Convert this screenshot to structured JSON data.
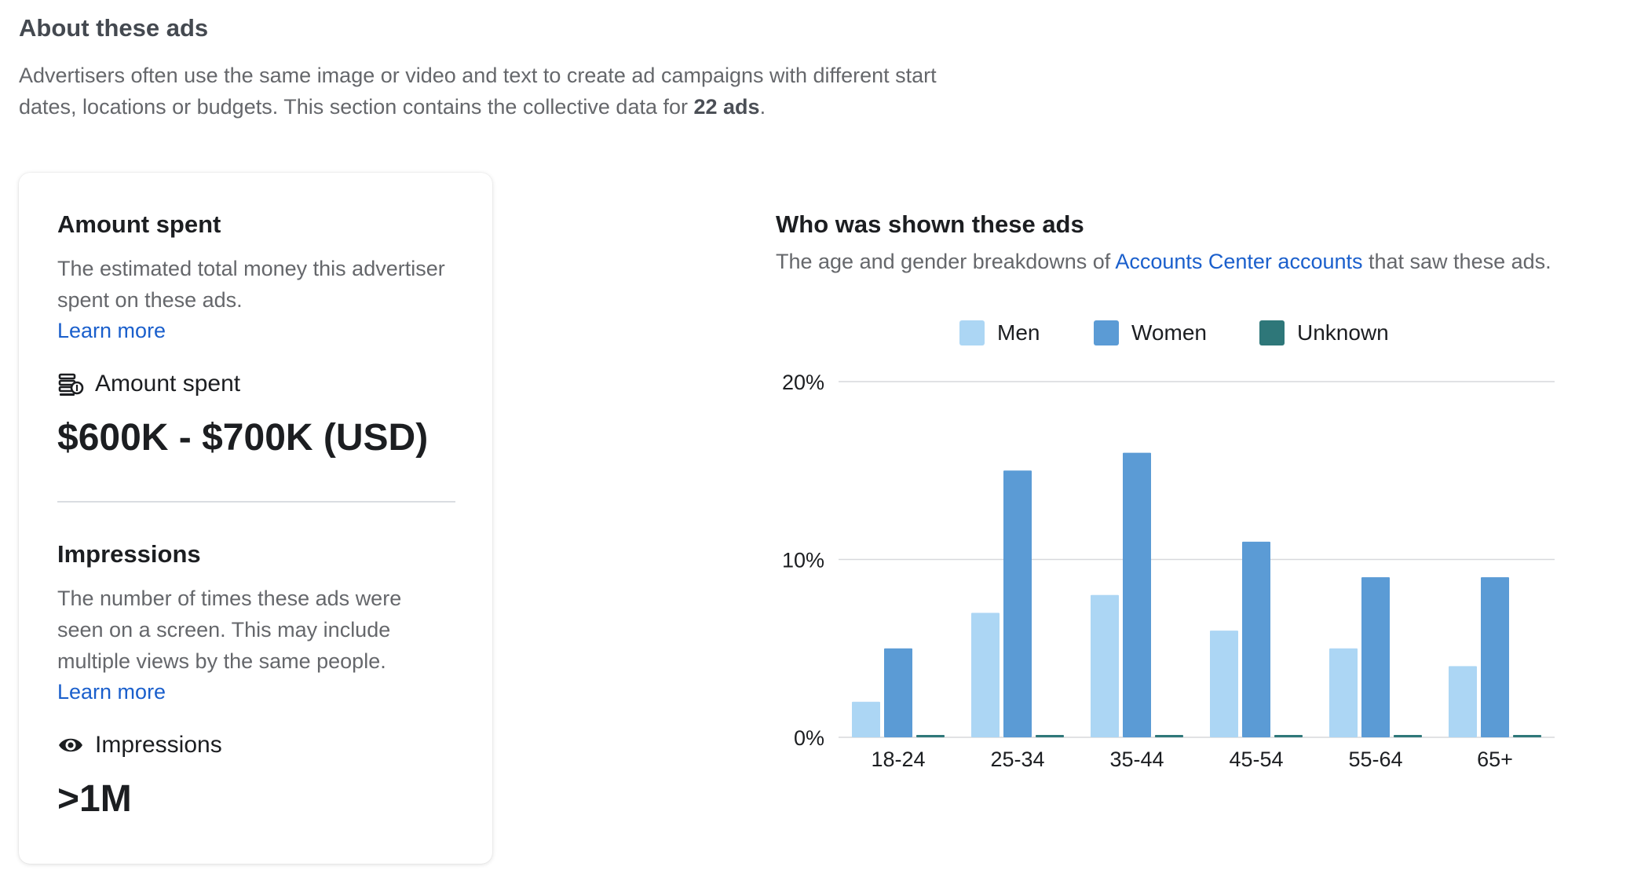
{
  "about": {
    "title": "About these ads",
    "desc_prefix": "Advertisers often use the same image or video and text to create ad campaigns with different start dates, locations or budgets. This section contains the collective data for ",
    "desc_count": "22 ads",
    "desc_suffix": "."
  },
  "amount_spent": {
    "title": "Amount spent",
    "description": "The estimated total money this advertiser spent on these ads.",
    "learn_more": "Learn more",
    "metric_label": "Amount spent",
    "metric_icon": "coins-stack-icon",
    "value": "$600K - $700K (USD)"
  },
  "impressions": {
    "title": "Impressions",
    "description": "The number of times these ads were seen on a screen. This may include multiple views by the same people.",
    "learn_more": "Learn more",
    "metric_label": "Impressions",
    "metric_icon": "eye-icon",
    "value": ">1M"
  },
  "audience": {
    "title": "Who was shown these ads",
    "subtitle_prefix": "The age and gender breakdowns of ",
    "subtitle_link": "Accounts Center accounts",
    "subtitle_suffix": " that saw these ads."
  },
  "chart_data": {
    "type": "bar",
    "categories": [
      "18-24",
      "25-34",
      "35-44",
      "45-54",
      "55-64",
      "65+"
    ],
    "series": [
      {
        "name": "Men",
        "color": "#acd6f4",
        "values": [
          2,
          7,
          8,
          6,
          5,
          4
        ]
      },
      {
        "name": "Women",
        "color": "#5b9bd5",
        "values": [
          5,
          15,
          16,
          11,
          9,
          9
        ]
      },
      {
        "name": "Unknown",
        "color": "#2e7779",
        "values": [
          0.1,
          0.1,
          0.1,
          0.1,
          0.1,
          0.1
        ]
      }
    ],
    "y_ticks": [
      "0%",
      "10%",
      "20%"
    ],
    "y_tick_values": [
      0,
      10,
      20
    ],
    "ylim": [
      0,
      20
    ],
    "unit": "%",
    "grid": true,
    "legend_position": "top"
  }
}
